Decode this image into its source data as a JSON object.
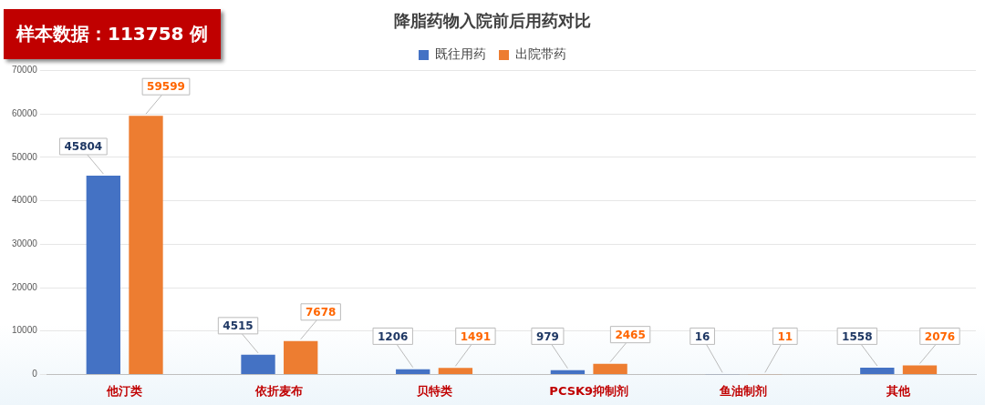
{
  "chart_data": {
    "type": "bar",
    "title": "降脂药物入院前后用药对比",
    "annotations": [
      "样本数据：113758 例"
    ],
    "categories": [
      "他汀类",
      "依折麦布",
      "贝特类",
      "PCSK9抑制剂",
      "鱼油制剂",
      "其他"
    ],
    "series": [
      {
        "name": "既往用药",
        "color": "#4472c4",
        "values": [
          45804,
          4515,
          1206,
          979,
          16,
          1558
        ]
      },
      {
        "name": "出院带药",
        "color": "#ed7d31",
        "values": [
          59599,
          7678,
          1491,
          2465,
          11,
          2076
        ]
      }
    ],
    "ylim": [
      0,
      70000
    ],
    "yticks": [
      0,
      10000,
      20000,
      30000,
      40000,
      50000,
      60000,
      70000
    ],
    "grid": "y",
    "legend": "top",
    "data_labels": true
  }
}
